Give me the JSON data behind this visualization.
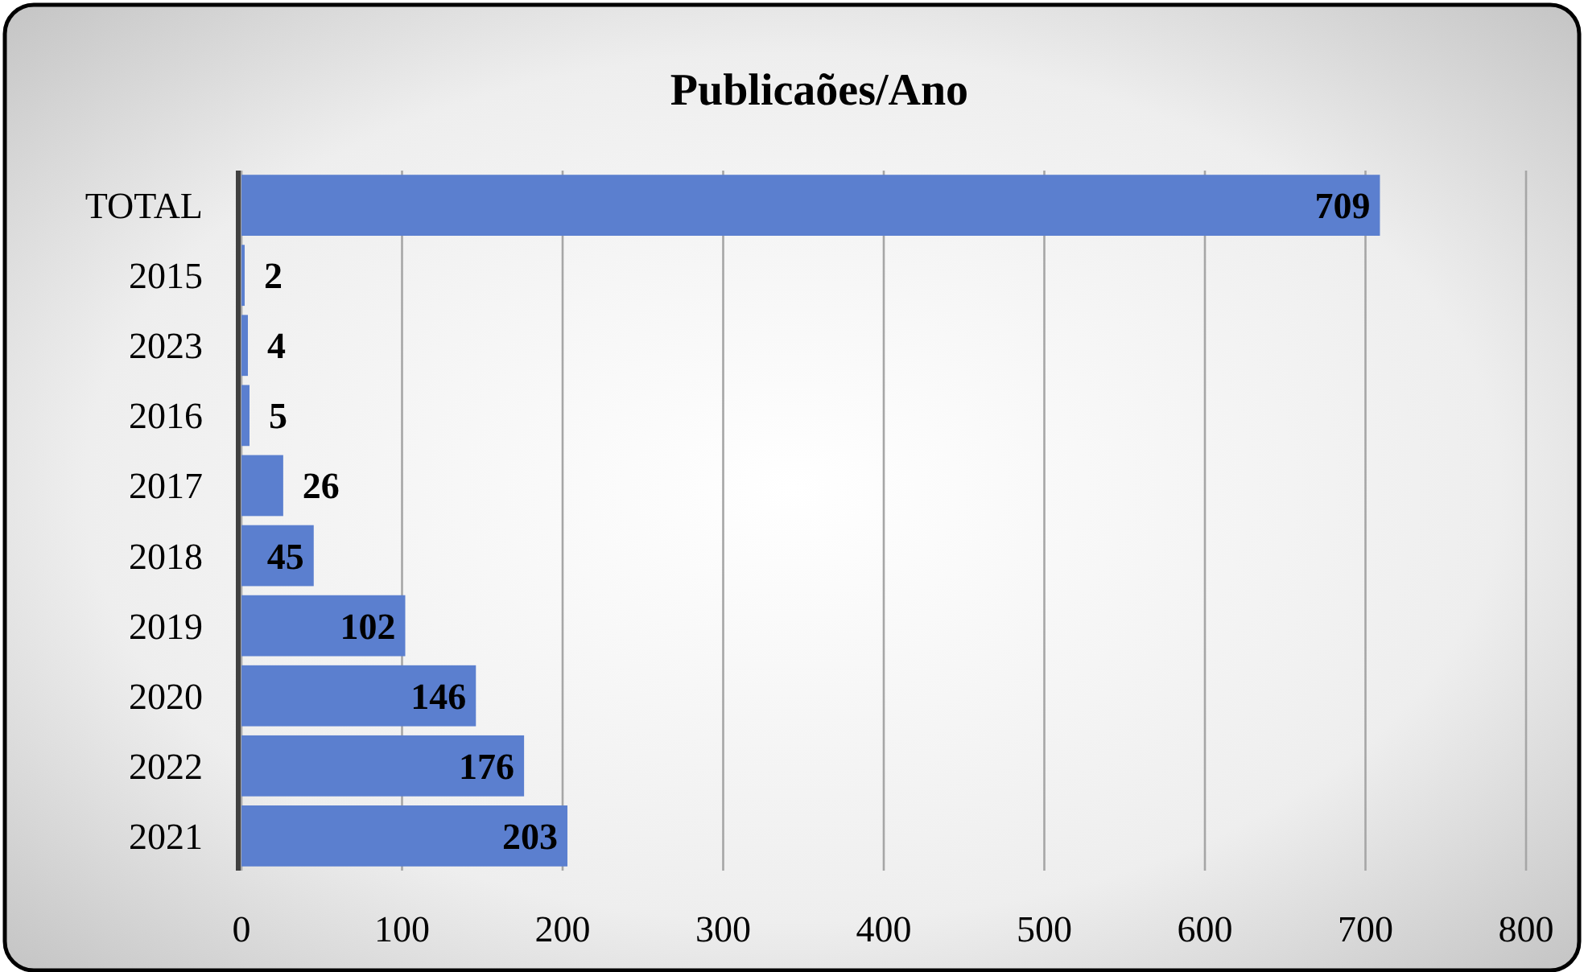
{
  "chart_data": {
    "type": "bar",
    "orientation": "horizontal",
    "title": "Publicaões/Ano",
    "categories": [
      "TOTAL",
      "2015",
      "2023",
      "2016",
      "2017",
      "2018",
      "2019",
      "2020",
      "2022",
      "2021"
    ],
    "values": [
      709,
      2,
      4,
      5,
      26,
      45,
      102,
      146,
      176,
      203
    ],
    "color": "#5b7fcf",
    "xlim": [
      0,
      800
    ],
    "xticks": [
      0,
      100,
      200,
      300,
      400,
      500,
      600,
      700,
      800
    ],
    "grid": "x",
    "data_labels": true
  }
}
